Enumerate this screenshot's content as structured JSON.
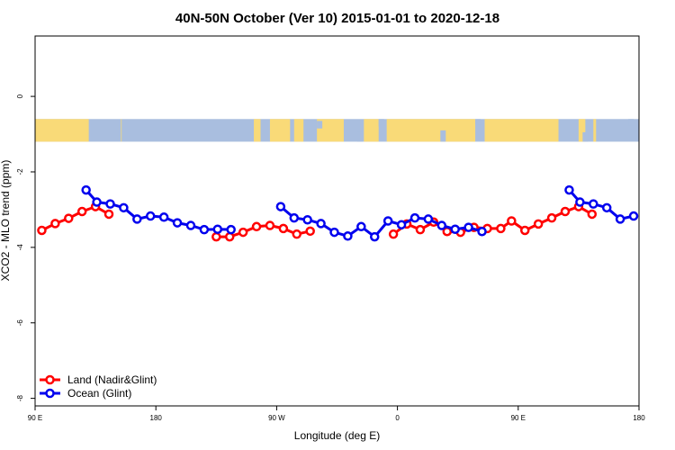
{
  "chart_data": {
    "type": "line",
    "title": "40N-50N October (Ver 10)   2015-01-01 to 2020-12-18",
    "xlabel": "Longitude (deg E)",
    "ylabel": "XCO2 - MLO trend (ppm)",
    "xlim": [
      90,
      540
    ],
    "ylim": [
      -8.2,
      1.6
    ],
    "x_ticks": [
      {
        "value": 90,
        "label": "90 E"
      },
      {
        "value": 180,
        "label": "180"
      },
      {
        "value": 270,
        "label": "90 W"
      },
      {
        "value": 360,
        "label": "0"
      },
      {
        "value": 450,
        "label": "90 E"
      },
      {
        "value": 540,
        "label": "180"
      }
    ],
    "y_ticks": [
      {
        "value": 0,
        "label": "0"
      },
      {
        "value": -2,
        "label": "-2"
      },
      {
        "value": -4,
        "label": "-4"
      },
      {
        "value": -6,
        "label": "-6"
      },
      {
        "value": -8,
        "label": "-8"
      }
    ],
    "land_mask_band": {
      "y_top": -0.6,
      "y_bottom": -1.2,
      "land_color": "#f9da78",
      "ocean_color": "#a9bedf"
    },
    "legend_position": "bottom-left",
    "series": [
      {
        "name": "Land (Nadir&Glint)",
        "color": "#ff0000",
        "segments": [
          [
            [
              95,
              -3.55
            ],
            [
              105,
              -3.37
            ],
            [
              115,
              -3.23
            ],
            [
              125,
              -3.05
            ],
            [
              135,
              -2.92
            ],
            [
              145,
              -3.12
            ]
          ],
          [
            [
              225,
              -3.72
            ],
            [
              235,
              -3.72
            ],
            [
              245,
              -3.6
            ],
            [
              255,
              -3.45
            ],
            [
              265,
              -3.42
            ],
            [
              275,
              -3.5
            ],
            [
              285,
              -3.65
            ],
            [
              295,
              -3.57
            ]
          ],
          [
            [
              357,
              -3.65
            ],
            [
              367,
              -3.38
            ],
            [
              377,
              -3.53
            ],
            [
              387,
              -3.33
            ],
            [
              397,
              -3.58
            ],
            [
              407,
              -3.6
            ],
            [
              417,
              -3.47
            ],
            [
              427,
              -3.5
            ],
            [
              437,
              -3.5
            ],
            [
              445,
              -3.3
            ],
            [
              455,
              -3.55
            ],
            [
              465,
              -3.38
            ],
            [
              475,
              -3.22
            ],
            [
              485,
              -3.05
            ],
            [
              495,
              -2.92
            ],
            [
              505,
              -3.12
            ]
          ]
        ]
      },
      {
        "name": "Ocean (Glint)",
        "color": "#0000ee",
        "segments": [
          [
            [
              128,
              -2.48
            ],
            [
              136,
              -2.8
            ],
            [
              146,
              -2.85
            ],
            [
              156,
              -2.95
            ],
            [
              166,
              -3.25
            ],
            [
              176,
              -3.17
            ],
            [
              186,
              -3.2
            ],
            [
              196,
              -3.35
            ],
            [
              206,
              -3.42
            ],
            [
              216,
              -3.53
            ],
            [
              226,
              -3.52
            ],
            [
              236,
              -3.53
            ]
          ],
          [
            [
              273,
              -2.92
            ],
            [
              283,
              -3.22
            ],
            [
              293,
              -3.27
            ],
            [
              303,
              -3.37
            ],
            [
              313,
              -3.6
            ],
            [
              323,
              -3.7
            ],
            [
              333,
              -3.45
            ],
            [
              343,
              -3.72
            ],
            [
              353,
              -3.3
            ],
            [
              363,
              -3.4
            ],
            [
              373,
              -3.22
            ],
            [
              383,
              -3.25
            ],
            [
              393,
              -3.42
            ],
            [
              403,
              -3.52
            ],
            [
              413,
              -3.47
            ],
            [
              423,
              -3.58
            ]
          ],
          [
            [
              488,
              -2.48
            ],
            [
              496,
              -2.8
            ],
            [
              506,
              -2.85
            ],
            [
              516,
              -2.95
            ],
            [
              526,
              -3.25
            ],
            [
              536,
              -3.17
            ]
          ]
        ]
      }
    ]
  }
}
